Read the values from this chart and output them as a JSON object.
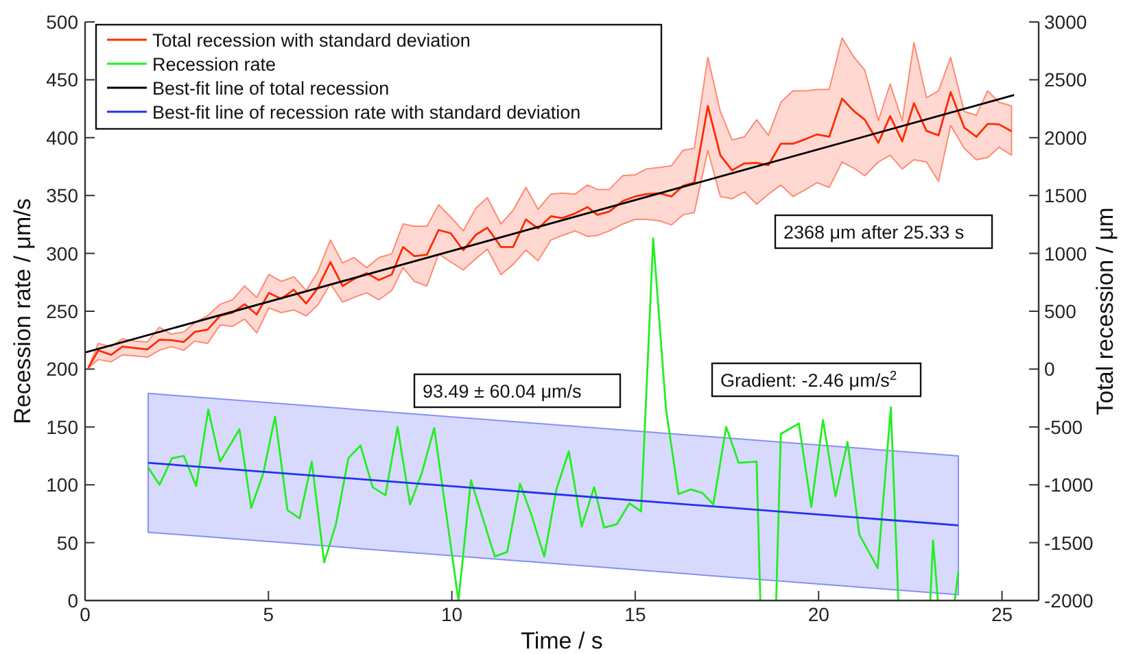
{
  "chart_data": {
    "type": "line",
    "xlabel": "Time / s",
    "ylabel": "Recession rate / μm/s",
    "y2label": "Total recession / μm",
    "xlim": [
      0,
      26
    ],
    "xticks": [
      0,
      5,
      10,
      15,
      20,
      25
    ],
    "ylim": [
      0,
      500
    ],
    "yticks": [
      0,
      50,
      100,
      150,
      200,
      250,
      300,
      350,
      400,
      450,
      500
    ],
    "y2lim": [
      -2000,
      3000
    ],
    "y2ticks": [
      -2000,
      -1500,
      -1000,
      -500,
      0,
      500,
      1000,
      1500,
      2000,
      2500,
      3000
    ],
    "legend": "top left",
    "marker": "none",
    "grid": false,
    "annotations": [
      "2368 μm after 25.33 s",
      "93.49 ± 60.04 μm/s",
      "Gradient: -2.46 μm/s$^{2}$"
    ],
    "series": [
      {
        "name": "Total recession with standard deviation",
        "axis": "y2",
        "color": "#ff2a00",
        "x": [
          0.09,
          0.36,
          0.71,
          1.02,
          1.35,
          1.7,
          2.03,
          2.34,
          2.69,
          2.99,
          3.34,
          3.68,
          4.02,
          4.35,
          4.68,
          5.01,
          5.35,
          5.69,
          6.03,
          6.34,
          6.69,
          7.02,
          7.33,
          7.68,
          8.01,
          8.36,
          8.67,
          8.98,
          9.32,
          9.64,
          9.97,
          10.31,
          10.66,
          10.97,
          11.34,
          11.67,
          12.02,
          12.35,
          12.7,
          13.01,
          13.36,
          13.7,
          13.97,
          14.29,
          14.66,
          15.0,
          15.31,
          15.66,
          15.99,
          16.3,
          16.61,
          16.98,
          17.32,
          17.64,
          17.98,
          18.31,
          18.63,
          18.97,
          19.3,
          19.65,
          19.96,
          20.29,
          20.64,
          20.95,
          21.26,
          21.63,
          21.95,
          22.28,
          22.6,
          22.94,
          23.27,
          23.6,
          23.97,
          24.3,
          24.61,
          24.92,
          25.26
        ],
        "values": [
          12,
          162,
          123,
          194,
          182,
          170,
          254,
          250,
          234,
          321,
          341,
          460,
          488,
          560,
          472,
          658,
          607,
          686,
          567,
          698,
          924,
          718,
          778,
          829,
          770,
          817,
          1055,
          976,
          988,
          1202,
          1174,
          1027,
          1162,
          1221,
          1055,
          1055,
          1293,
          1214,
          1321,
          1305,
          1345,
          1400,
          1333,
          1361,
          1452,
          1492,
          1512,
          1520,
          1492,
          1583,
          1611,
          2274,
          1849,
          1718,
          1778,
          1782,
          1762,
          1948,
          1948,
          1988,
          2028,
          2008,
          2337,
          2234,
          2155,
          1956,
          2186,
          1968,
          2297,
          2059,
          2020,
          2393,
          2087,
          2008,
          2119,
          2115,
          2055
        ],
        "upper": [
          12,
          222,
          194,
          262,
          242,
          234,
          361,
          302,
          321,
          401,
          460,
          560,
          599,
          718,
          619,
          817,
          758,
          798,
          679,
          837,
          1115,
          917,
          964,
          877,
          964,
          996,
          1254,
          1234,
          1234,
          1420,
          1313,
          1194,
          1393,
          1480,
          1254,
          1373,
          1571,
          1381,
          1512,
          1520,
          1512,
          1591,
          1552,
          1552,
          1671,
          1679,
          1730,
          1742,
          1758,
          1889,
          1909,
          2694,
          2226,
          1980,
          2008,
          2155,
          2020,
          2305,
          2405,
          2405,
          2417,
          2417,
          2861,
          2702,
          2583,
          2147,
          2464,
          2147,
          2821,
          2345,
          2405,
          2694,
          2226,
          2194,
          2405,
          2305,
          2274
        ],
        "lower": [
          12,
          83,
          63,
          123,
          115,
          103,
          163,
          194,
          163,
          242,
          222,
          381,
          369,
          432,
          313,
          528,
          488,
          512,
          460,
          552,
          738,
          579,
          619,
          659,
          599,
          679,
          877,
          758,
          718,
          996,
          925,
          857,
          956,
          1036,
          817,
          905,
          1028,
          937,
          1115,
          1155,
          1194,
          1147,
          1155,
          1194,
          1254,
          1294,
          1294,
          1282,
          1246,
          1333,
          1353,
          1889,
          1492,
          1472,
          1532,
          1425,
          1512,
          1591,
          1492,
          1552,
          1611,
          1571,
          1790,
          1738,
          1671,
          1790,
          1849,
          1730,
          1809,
          1790,
          1623,
          2107,
          1909,
          1809,
          1829,
          1917,
          1849
        ]
      },
      {
        "name": "Recession rate",
        "axis": "y",
        "color": "#22ee22",
        "x": [
          1.72,
          2.03,
          2.37,
          2.69,
          3.03,
          3.36,
          3.68,
          4.21,
          4.53,
          4.86,
          5.18,
          5.52,
          5.85,
          6.18,
          6.52,
          6.84,
          7.18,
          7.51,
          7.84,
          8.19,
          8.52,
          8.86,
          9.18,
          9.52,
          10.18,
          10.52,
          11.17,
          11.51,
          11.86,
          12.17,
          12.52,
          12.85,
          13.19,
          13.54,
          13.88,
          14.15,
          14.5,
          14.84,
          15.16,
          15.49,
          15.84,
          16.18,
          16.51,
          16.83,
          17.13,
          17.48,
          17.82,
          18.31,
          18.47,
          18.78,
          18.97,
          19.46,
          19.8,
          20.12,
          20.46,
          20.79,
          21.11,
          21.61,
          21.97,
          22.26,
          22.94,
          23.12,
          23.43,
          23.81
        ],
        "values": [
          115,
          100,
          123,
          125,
          99,
          165,
          120,
          148,
          80,
          110,
          159,
          78,
          71,
          120,
          33,
          66,
          123,
          134,
          98,
          91,
          150,
          83,
          110,
          149,
          0,
          104,
          38,
          42,
          101,
          74,
          38,
          96,
          129,
          64,
          98,
          63,
          66,
          84,
          77,
          313,
          165,
          92,
          96,
          93,
          83,
          150,
          119,
          120,
          null,
          null,
          144,
          153,
          81,
          156,
          90,
          137,
          57,
          28,
          167,
          null,
          null,
          52,
          null,
          25
        ]
      },
      {
        "name": "Best-fit line of total recession",
        "axis": "y2",
        "color": "#000000",
        "x": [
          0,
          25.33
        ],
        "values": [
          143,
          2368
        ]
      },
      {
        "name": "Best-fit line of recession rate with standard deviation",
        "axis": "y",
        "color": "#2233ee",
        "x": [
          1.72,
          23.81
        ],
        "values": [
          119,
          65
        ],
        "upper": [
          179,
          125
        ],
        "lower": [
          59,
          5
        ]
      }
    ]
  }
}
